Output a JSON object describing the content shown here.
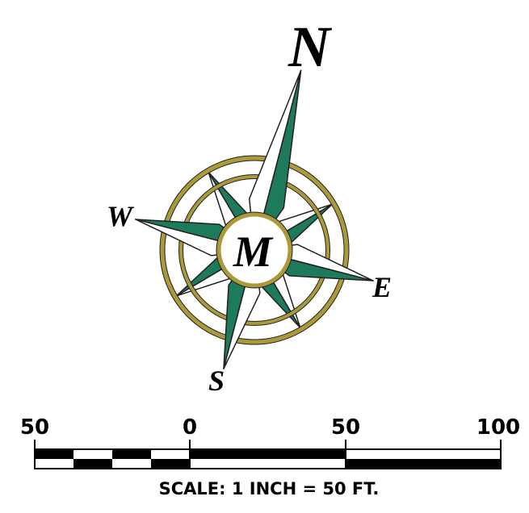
{
  "compass": {
    "north": "N",
    "east": "E",
    "south": "S",
    "west": "W",
    "center": "M"
  },
  "scale_bar": {
    "labels": [
      "50",
      "0",
      "50",
      "100"
    ],
    "caption": "SCALE: 1 INCH = 50 FT."
  }
}
